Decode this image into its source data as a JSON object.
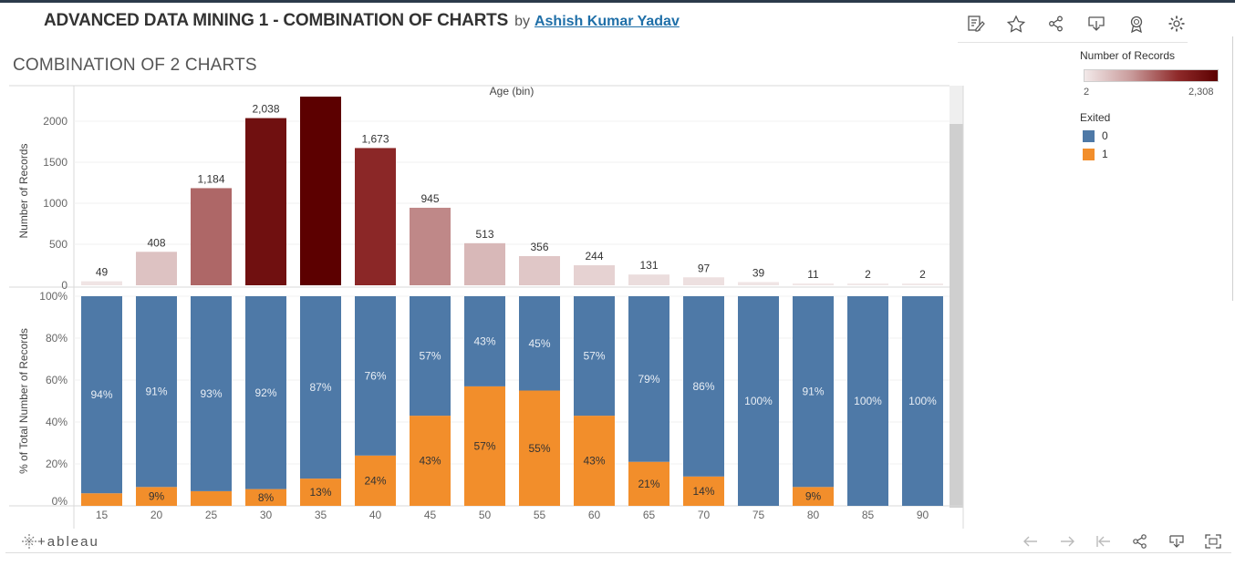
{
  "header": {
    "title": "ADVANCED DATA MINING 1 - COMBINATION OF CHARTS",
    "by": "by",
    "author": "Ashish Kumar Yadav"
  },
  "subtitle": "COMBINATION OF 2 CHARTS",
  "toolbar_icons": [
    "edit-icon",
    "star-icon",
    "share-icon",
    "download-icon",
    "badge-icon",
    "settings-icon"
  ],
  "legend": {
    "color_title": "Number of Records",
    "color_min": "2",
    "color_max": "2,308",
    "exited_title": "Exited",
    "exited_items": [
      {
        "label": "0",
        "color": "#4e79a7"
      },
      {
        "label": "1",
        "color": "#f28e2b"
      }
    ]
  },
  "footer": {
    "brand": "+ableau",
    "nav_icons": [
      "back-arrow-icon",
      "forward-arrow-icon",
      "reset-icon",
      "share-icon",
      "download-icon",
      "fullscreen-icon"
    ]
  },
  "chart_data": [
    {
      "type": "bar",
      "title": "",
      "xlabel": "Age (bin)",
      "ylabel": "Number of Records",
      "categories": [
        "15",
        "20",
        "25",
        "30",
        "35",
        "40",
        "45",
        "50",
        "55",
        "60",
        "65",
        "70",
        "75",
        "80",
        "85",
        "90"
      ],
      "values": [
        49,
        408,
        1184,
        2038,
        2308,
        1673,
        945,
        513,
        356,
        244,
        131,
        97,
        39,
        11,
        2,
        2
      ],
      "value_labels": [
        "49",
        "408",
        "1,184",
        "2,038",
        "",
        "1,673",
        "945",
        "513",
        "356",
        "244",
        "131",
        "97",
        "39",
        "11",
        "2",
        "2"
      ],
      "yticks": [
        "0",
        "500",
        "1000",
        "1500",
        "2000"
      ],
      "ylim": [
        0,
        2300
      ],
      "color_scale": {
        "min": 2,
        "max": 2308,
        "low": "#f2e9e9",
        "high": "#5c0000"
      },
      "grid": true
    },
    {
      "type": "bar",
      "stacked": true,
      "title": "",
      "xlabel": "",
      "ylabel": "% of Total Number of Records",
      "categories": [
        "15",
        "20",
        "25",
        "30",
        "35",
        "40",
        "45",
        "50",
        "55",
        "60",
        "65",
        "70",
        "75",
        "80",
        "85",
        "90"
      ],
      "series": [
        {
          "name": "0",
          "color": "#4e79a7",
          "values": [
            94,
            91,
            93,
            92,
            87,
            76,
            57,
            43,
            45,
            57,
            79,
            86,
            100,
            91,
            100,
            100
          ],
          "labels": [
            "94%",
            "91%",
            "93%",
            "92%",
            "87%",
            "76%",
            "57%",
            "43%",
            "45%",
            "57%",
            "79%",
            "86%",
            "100%",
            "91%",
            "100%",
            "100%"
          ]
        },
        {
          "name": "1",
          "color": "#f28e2b",
          "values": [
            6,
            9,
            7,
            8,
            13,
            24,
            43,
            57,
            55,
            43,
            21,
            14,
            0,
            9,
            0,
            0
          ],
          "labels": [
            "",
            "9%",
            "",
            "8%",
            "13%",
            "24%",
            "43%",
            "57%",
            "55%",
            "43%",
            "21%",
            "14%",
            "",
            "9%",
            "",
            ""
          ]
        }
      ],
      "yticks": [
        "0%",
        "20%",
        "40%",
        "60%",
        "80%",
        "100%"
      ],
      "ylim": [
        0,
        100
      ],
      "grid": true
    }
  ]
}
